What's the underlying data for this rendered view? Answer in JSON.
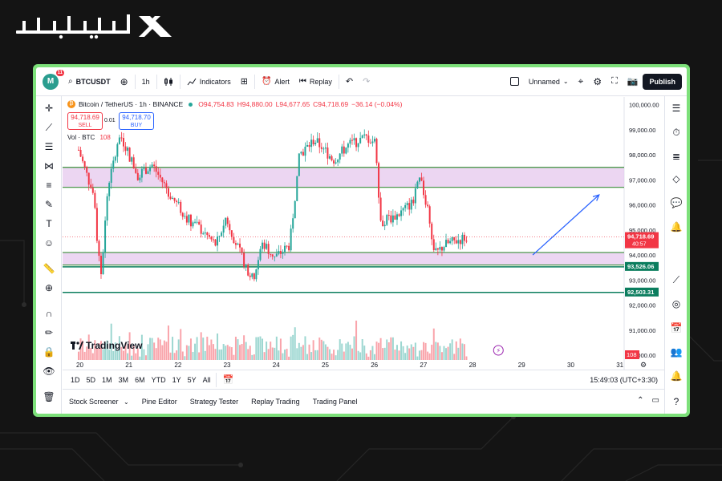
{
  "brand": {
    "logo_text": "تیوبیت"
  },
  "colors": {
    "frame": "#7de07a",
    "up": "#26a69a",
    "down": "#f23645",
    "zone": "#e6c8ee",
    "zone_line": "#3a8f3a",
    "arrow": "#2962ff"
  },
  "topbar": {
    "avatar_letter": "M",
    "notif_count": "11",
    "symbol": "BTCUSDT",
    "interval": "1h",
    "indicators_label": "Indicators",
    "alert_label": "Alert",
    "replay_label": "Replay",
    "layout_name": "Unnamed",
    "publish_label": "Publish"
  },
  "legend": {
    "title": "Bitcoin / TetherUS · 1h · BINANCE",
    "o": "O94,754.83",
    "h": "H94,880.00",
    "l": "L94,677.65",
    "c": "C94,718.69",
    "chg": "−36.14 (−0.04%)",
    "sell_price": "94,718.69",
    "sell_label": "SELL",
    "buy_price": "94,718.70",
    "buy_label": "BUY",
    "spread": "0.01",
    "vol_label": "Vol · BTC",
    "vol_value": "108"
  },
  "watermark": "TradingView",
  "chart_data": {
    "type": "candlestick",
    "x_labels": [
      "20",
      "21",
      "22",
      "23",
      "24",
      "25",
      "26",
      "27",
      "28",
      "29",
      "30",
      "31"
    ],
    "y_labels": [
      "100,000.00",
      "99,000.00",
      "98,000.00",
      "97,000.00",
      "96,000.00",
      "95,000.00",
      "94,000.00",
      "93,000.00",
      "92,000.00",
      "91,000.00",
      "90,000.00"
    ],
    "ylim": [
      90000,
      100500
    ],
    "price_tag": "94,718.69",
    "countdown": "40:57",
    "level_1_tag": "93,526.06",
    "level_2_tag": "92,503.31",
    "volume_tag": "108",
    "zones": [
      {
        "from": 96700,
        "to": 97500
      },
      {
        "from": 93600,
        "to": 94100
      }
    ],
    "levels": [
      93526.06,
      92503.31
    ],
    "close_path": [
      {
        "x": 0.0,
        "y": 98200
      },
      {
        "x": 0.3,
        "y": 96400
      },
      {
        "x": 0.45,
        "y": 93000
      },
      {
        "x": 0.6,
        "y": 96800
      },
      {
        "x": 0.85,
        "y": 98800
      },
      {
        "x": 1.2,
        "y": 97200
      },
      {
        "x": 1.5,
        "y": 97600
      },
      {
        "x": 1.9,
        "y": 96300
      },
      {
        "x": 2.2,
        "y": 95500
      },
      {
        "x": 2.5,
        "y": 95000
      },
      {
        "x": 2.8,
        "y": 94400
      },
      {
        "x": 3.0,
        "y": 95500
      },
      {
        "x": 3.3,
        "y": 94000
      },
      {
        "x": 3.55,
        "y": 93000
      },
      {
        "x": 3.75,
        "y": 94500
      },
      {
        "x": 4.0,
        "y": 93900
      },
      {
        "x": 4.3,
        "y": 94400
      },
      {
        "x": 4.5,
        "y": 98000
      },
      {
        "x": 4.8,
        "y": 98600
      },
      {
        "x": 5.2,
        "y": 97800
      },
      {
        "x": 5.5,
        "y": 98400
      },
      {
        "x": 5.85,
        "y": 98700
      },
      {
        "x": 6.05,
        "y": 98500
      },
      {
        "x": 6.15,
        "y": 95300
      },
      {
        "x": 6.5,
        "y": 95600
      },
      {
        "x": 6.8,
        "y": 96100
      },
      {
        "x": 6.95,
        "y": 97000
      },
      {
        "x": 7.1,
        "y": 96000
      },
      {
        "x": 7.25,
        "y": 94000
      },
      {
        "x": 7.45,
        "y": 94400
      },
      {
        "x": 7.9,
        "y": 94718.69
      }
    ],
    "arrow": {
      "from": {
        "x": 9.25,
        "y": 94000
      },
      "to": {
        "x": 10.6,
        "y": 96400
      }
    }
  },
  "timebar": {
    "ranges": [
      "1D",
      "5D",
      "1M",
      "3M",
      "6M",
      "YTD",
      "1Y",
      "5Y",
      "All"
    ],
    "clock": "15:49:03 (UTC+3:30)"
  },
  "bottombar": {
    "items": [
      "Stock Screener",
      "Pine Editor",
      "Strategy Tester",
      "Replay Trading",
      "Trading Panel"
    ]
  }
}
